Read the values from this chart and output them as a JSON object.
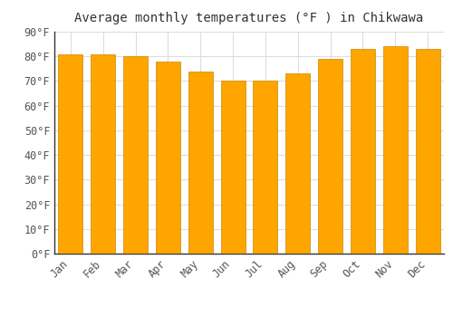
{
  "title": "Average monthly temperatures (°F ) in Chikwawa",
  "months": [
    "Jan",
    "Feb",
    "Mar",
    "Apr",
    "May",
    "Jun",
    "Jul",
    "Aug",
    "Sep",
    "Oct",
    "Nov",
    "Dec"
  ],
  "values": [
    81,
    81,
    80,
    78,
    74,
    70,
    70,
    73,
    79,
    83,
    84,
    83
  ],
  "bar_color_top": "#FFA500",
  "bar_color_bottom": "#FFD070",
  "bar_edge_color": "#CC8800",
  "ylim": [
    0,
    90
  ],
  "yticks": [
    0,
    10,
    20,
    30,
    40,
    50,
    60,
    70,
    80,
    90
  ],
  "ytick_labels": [
    "0°F",
    "10°F",
    "20°F",
    "30°F",
    "40°F",
    "50°F",
    "60°F",
    "70°F",
    "80°F",
    "90°F"
  ],
  "background_color": "#FFFFFF",
  "grid_color": "#DDDDDD",
  "title_fontsize": 10,
  "tick_fontsize": 8.5,
  "bar_width": 0.75
}
